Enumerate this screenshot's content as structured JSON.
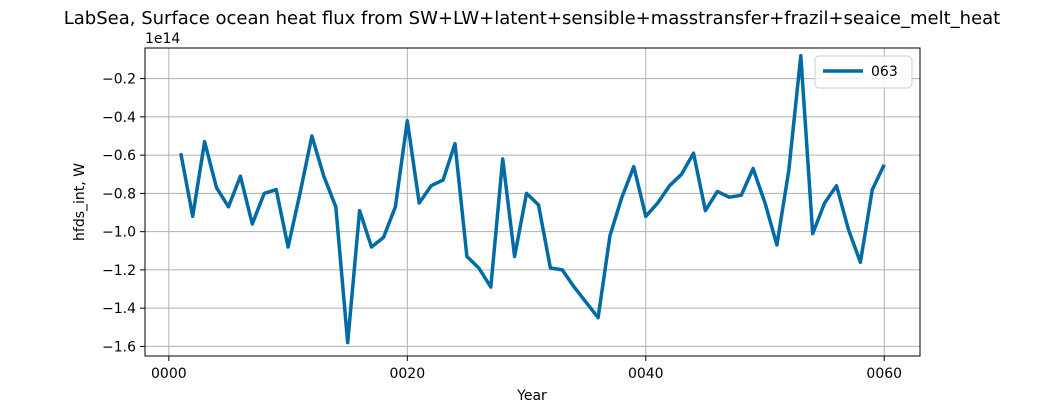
{
  "chart_data": {
    "type": "line",
    "title": "LabSea, Surface ocean heat flux from SW+LW+latent+sensible+masstransfer+frazil+seaice_melt_heat",
    "xlabel": "Year",
    "ylabel": "hfds_int, W",
    "y_offset_label": "1e14",
    "xlim": [
      -2,
      63
    ],
    "ylim": [
      -1.65,
      -0.04
    ],
    "x_ticks": [
      0,
      20,
      40,
      60
    ],
    "x_tick_labels": [
      "0000",
      "0020",
      "0040",
      "0060"
    ],
    "y_ticks": [
      -1.6,
      -1.4,
      -1.2,
      -1.0,
      -0.8,
      -0.6,
      -0.4,
      -0.2
    ],
    "y_tick_labels": [
      "−1.6",
      "−1.4",
      "−1.2",
      "−1.0",
      "−0.8",
      "−0.6",
      "−0.4",
      "−0.2"
    ],
    "grid": true,
    "legend_position": "top-right",
    "series": [
      {
        "name": "063",
        "color": "#006ba4",
        "x": [
          1,
          2,
          3,
          4,
          5,
          6,
          7,
          8,
          9,
          10,
          11,
          12,
          13,
          14,
          15,
          16,
          17,
          18,
          19,
          20,
          21,
          22,
          23,
          24,
          25,
          26,
          27,
          28,
          29,
          30,
          31,
          32,
          33,
          34,
          35,
          36,
          37,
          38,
          39,
          40,
          41,
          42,
          43,
          44,
          45,
          46,
          47,
          48,
          49,
          50,
          51,
          52,
          53,
          54,
          55,
          56,
          57,
          58,
          59,
          60
        ],
        "values": [
          -0.59,
          -0.92,
          -0.53,
          -0.77,
          -0.87,
          -0.71,
          -0.96,
          -0.8,
          -0.78,
          -1.08,
          -0.8,
          -0.5,
          -0.71,
          -0.87,
          -1.58,
          -0.89,
          -1.08,
          -1.03,
          -0.87,
          -0.42,
          -0.85,
          -0.76,
          -0.73,
          -0.54,
          -1.13,
          -1.19,
          -1.29,
          -0.62,
          -1.13,
          -0.8,
          -0.86,
          -1.19,
          -1.2,
          -1.29,
          -1.37,
          -1.45,
          -1.02,
          -0.82,
          -0.66,
          -0.92,
          -0.85,
          -0.76,
          -0.7,
          -0.59,
          -0.89,
          -0.79,
          -0.82,
          -0.81,
          -0.67,
          -0.85,
          -1.07,
          -0.68,
          -0.08,
          -1.01,
          -0.85,
          -0.76,
          -0.99,
          -1.16,
          -0.78,
          -0.65
        ]
      }
    ]
  }
}
